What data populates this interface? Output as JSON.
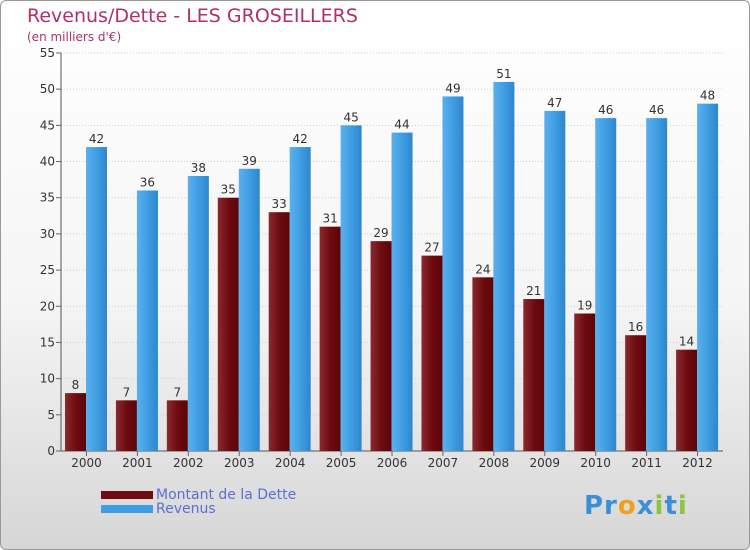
{
  "chart_data": {
    "type": "bar",
    "title": "Revenus/Dette - LES GROSEILLERS",
    "subtitle": "(en milliers d'€)",
    "categories": [
      "2000",
      "2001",
      "2002",
      "2003",
      "2004",
      "2005",
      "2006",
      "2007",
      "2008",
      "2009",
      "2010",
      "2011",
      "2012"
    ],
    "series": [
      {
        "name": "Montant de la Dette",
        "color": "#6e0c10",
        "values": [
          8,
          7,
          7,
          35,
          33,
          31,
          29,
          27,
          24,
          21,
          19,
          16,
          14
        ]
      },
      {
        "name": "Revenus",
        "color": "#3f9ee3",
        "values": [
          42,
          36,
          38,
          39,
          42,
          45,
          44,
          49,
          51,
          47,
          46,
          46,
          48
        ]
      }
    ],
    "ylim": [
      0,
      55
    ],
    "yticks": [
      0,
      5,
      10,
      15,
      20,
      25,
      30,
      35,
      40,
      45,
      50,
      55
    ],
    "grid": true,
    "legend_position": "bottom-left"
  },
  "logo": {
    "p1": "Pr",
    "o": "o",
    "x": "x",
    "i1": "i",
    "t": "t",
    "i2": "i"
  }
}
